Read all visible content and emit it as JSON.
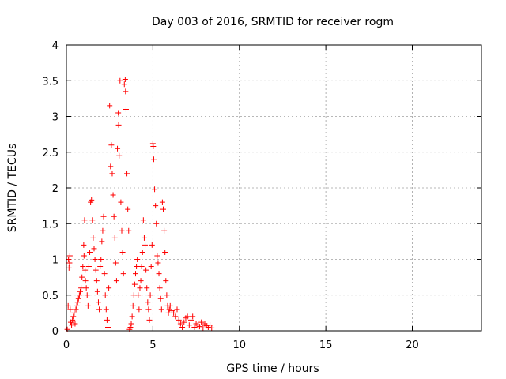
{
  "chart_data": {
    "type": "scatter",
    "title": "Day 003 of 2016, SRMTID for receiver rogm",
    "xlabel": "GPS time / hours",
    "ylabel": "SRMTID / TECUs",
    "xlim": [
      0,
      24
    ],
    "ylim": [
      0,
      4
    ],
    "xticks": [
      0,
      5,
      10,
      15,
      20
    ],
    "yticks": [
      0,
      0.5,
      1,
      1.5,
      2,
      2.5,
      3,
      3.5,
      4
    ],
    "xtick_labels": [
      "0",
      "5",
      "10",
      "15",
      "20"
    ],
    "ytick_labels": [
      "0",
      "0.5",
      "1",
      "1.5",
      "2",
      "2.5",
      "3",
      "3.5",
      "4"
    ],
    "grid": true,
    "marker": "+",
    "color": "#ff0000",
    "series": [
      {
        "name": "SRMTID",
        "points": [
          [
            0.05,
            0.02
          ],
          [
            0.1,
            0.35
          ],
          [
            0.12,
            1.0
          ],
          [
            0.15,
            0.88
          ],
          [
            0.18,
            0.95
          ],
          [
            0.2,
            1.05
          ],
          [
            0.22,
            0.3
          ],
          [
            0.25,
            0.12
          ],
          [
            0.3,
            0.08
          ],
          [
            0.35,
            0.15
          ],
          [
            0.4,
            0.2
          ],
          [
            0.45,
            0.25
          ],
          [
            0.5,
            0.1
          ],
          [
            0.55,
            0.3
          ],
          [
            0.6,
            0.35
          ],
          [
            0.65,
            0.4
          ],
          [
            0.7,
            0.45
          ],
          [
            0.75,
            0.5
          ],
          [
            0.8,
            0.55
          ],
          [
            0.85,
            0.6
          ],
          [
            0.9,
            0.75
          ],
          [
            0.95,
            0.9
          ],
          [
            1.0,
            1.2
          ],
          [
            1.02,
            1.05
          ],
          [
            1.05,
            1.55
          ],
          [
            1.08,
            0.85
          ],
          [
            1.1,
            0.7
          ],
          [
            1.15,
            0.6
          ],
          [
            1.2,
            0.5
          ],
          [
            1.25,
            0.35
          ],
          [
            1.3,
            0.9
          ],
          [
            1.35,
            1.1
          ],
          [
            1.4,
            1.8
          ],
          [
            1.45,
            1.83
          ],
          [
            1.5,
            1.55
          ],
          [
            1.55,
            1.3
          ],
          [
            1.6,
            1.15
          ],
          [
            1.65,
            1.0
          ],
          [
            1.7,
            0.85
          ],
          [
            1.75,
            0.7
          ],
          [
            1.8,
            0.55
          ],
          [
            1.85,
            0.4
          ],
          [
            1.9,
            0.3
          ],
          [
            1.95,
            0.9
          ],
          [
            2.0,
            1.0
          ],
          [
            2.05,
            1.25
          ],
          [
            2.1,
            1.4
          ],
          [
            2.15,
            1.6
          ],
          [
            2.2,
            0.8
          ],
          [
            2.25,
            0.5
          ],
          [
            2.3,
            0.3
          ],
          [
            2.35,
            0.15
          ],
          [
            2.4,
            0.05
          ],
          [
            2.45,
            0.6
          ],
          [
            2.5,
            3.15
          ],
          [
            2.55,
            2.3
          ],
          [
            2.6,
            2.6
          ],
          [
            2.65,
            2.2
          ],
          [
            2.7,
            1.9
          ],
          [
            2.75,
            1.6
          ],
          [
            2.8,
            1.3
          ],
          [
            2.85,
            0.95
          ],
          [
            2.9,
            0.7
          ],
          [
            2.95,
            2.55
          ],
          [
            3.0,
            3.05
          ],
          [
            3.02,
            2.88
          ],
          [
            3.05,
            2.45
          ],
          [
            3.1,
            3.5
          ],
          [
            3.15,
            1.8
          ],
          [
            3.2,
            1.4
          ],
          [
            3.25,
            1.1
          ],
          [
            3.3,
            0.8
          ],
          [
            3.35,
            3.45
          ],
          [
            3.4,
            3.52
          ],
          [
            3.42,
            3.35
          ],
          [
            3.45,
            3.1
          ],
          [
            3.5,
            2.2
          ],
          [
            3.55,
            1.7
          ],
          [
            3.6,
            1.4
          ],
          [
            3.65,
            0.02
          ],
          [
            3.7,
            0.05
          ],
          [
            3.75,
            0.1
          ],
          [
            3.8,
            0.2
          ],
          [
            3.85,
            0.35
          ],
          [
            3.9,
            0.5
          ],
          [
            3.95,
            0.65
          ],
          [
            4.0,
            0.8
          ],
          [
            4.05,
            0.9
          ],
          [
            4.1,
            1.0
          ],
          [
            4.15,
            0.5
          ],
          [
            4.2,
            0.3
          ],
          [
            4.25,
            0.6
          ],
          [
            4.3,
            0.7
          ],
          [
            4.35,
            0.9
          ],
          [
            4.4,
            1.1
          ],
          [
            4.45,
            1.55
          ],
          [
            4.5,
            1.3
          ],
          [
            4.55,
            1.2
          ],
          [
            4.6,
            0.85
          ],
          [
            4.65,
            0.6
          ],
          [
            4.7,
            0.4
          ],
          [
            4.75,
            0.3
          ],
          [
            4.8,
            0.15
          ],
          [
            4.85,
            0.5
          ],
          [
            4.9,
            0.9
          ],
          [
            4.95,
            1.2
          ],
          [
            5.0,
            2.62
          ],
          [
            5.02,
            2.58
          ],
          [
            5.05,
            2.4
          ],
          [
            5.1,
            1.98
          ],
          [
            5.15,
            1.75
          ],
          [
            5.2,
            1.5
          ],
          [
            5.25,
            1.05
          ],
          [
            5.3,
            0.95
          ],
          [
            5.35,
            0.8
          ],
          [
            5.4,
            0.6
          ],
          [
            5.45,
            0.45
          ],
          [
            5.5,
            0.3
          ],
          [
            5.55,
            1.8
          ],
          [
            5.6,
            1.7
          ],
          [
            5.65,
            1.4
          ],
          [
            5.7,
            1.1
          ],
          [
            5.75,
            0.7
          ],
          [
            5.8,
            0.5
          ],
          [
            5.85,
            0.35
          ],
          [
            5.9,
            0.25
          ],
          [
            5.95,
            0.3
          ],
          [
            6.0,
            0.35
          ],
          [
            6.1,
            0.28
          ],
          [
            6.2,
            0.25
          ],
          [
            6.3,
            0.2
          ],
          [
            6.4,
            0.3
          ],
          [
            6.5,
            0.15
          ],
          [
            6.6,
            0.1
          ],
          [
            6.7,
            0.05
          ],
          [
            6.8,
            0.12
          ],
          [
            6.9,
            0.18
          ],
          [
            7.0,
            0.2
          ],
          [
            7.1,
            0.08
          ],
          [
            7.2,
            0.15
          ],
          [
            7.3,
            0.2
          ],
          [
            7.4,
            0.05
          ],
          [
            7.5,
            0.1
          ],
          [
            7.6,
            0.08
          ],
          [
            7.7,
            0.06
          ],
          [
            7.8,
            0.12
          ],
          [
            7.9,
            0.04
          ],
          [
            8.0,
            0.1
          ],
          [
            8.1,
            0.07
          ],
          [
            8.2,
            0.05
          ],
          [
            8.3,
            0.08
          ],
          [
            8.4,
            0.04
          ]
        ]
      }
    ]
  }
}
